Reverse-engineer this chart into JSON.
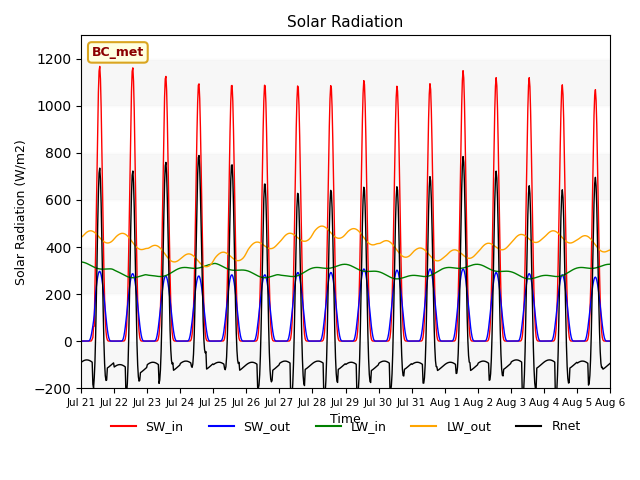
{
  "title": "Solar Radiation",
  "xlabel": "Time",
  "ylabel": "Solar Radiation (W/m2)",
  "ylim": [
    -200,
    1300
  ],
  "yticks": [
    -200,
    0,
    200,
    400,
    600,
    800,
    1000,
    1200
  ],
  "site_label": "BC_met",
  "legend": [
    "SW_in",
    "SW_out",
    "LW_in",
    "LW_out",
    "Rnet"
  ],
  "line_colors": [
    "red",
    "blue",
    "green",
    "orange",
    "black"
  ],
  "n_days": 16,
  "figsize": [
    6.4,
    4.8
  ],
  "dpi": 100,
  "sw_peaks": [
    1170,
    1165,
    1130,
    1100,
    1095,
    1095,
    1090,
    1090,
    1110,
    1085,
    1095,
    1150,
    1120,
    1120,
    1090,
    1070
  ],
  "sw_out_peaks": [
    300,
    290,
    280,
    280,
    285,
    285,
    295,
    295,
    310,
    305,
    310,
    310,
    295,
    290,
    285,
    275
  ],
  "lw_in_base": [
    305,
    300,
    295,
    295,
    300,
    300,
    295,
    295,
    295,
    295,
    295,
    295,
    295,
    295,
    295,
    295
  ],
  "lw_out_base": [
    395,
    400,
    390,
    390,
    400,
    410,
    405,
    415,
    420,
    410,
    415,
    410,
    405,
    400,
    395,
    390
  ],
  "night_rnet": [
    -100,
    -120,
    -110,
    -105,
    -110,
    -110,
    -105,
    -105,
    -110,
    -105,
    -110,
    -110,
    -105,
    -100,
    -100,
    -105
  ]
}
